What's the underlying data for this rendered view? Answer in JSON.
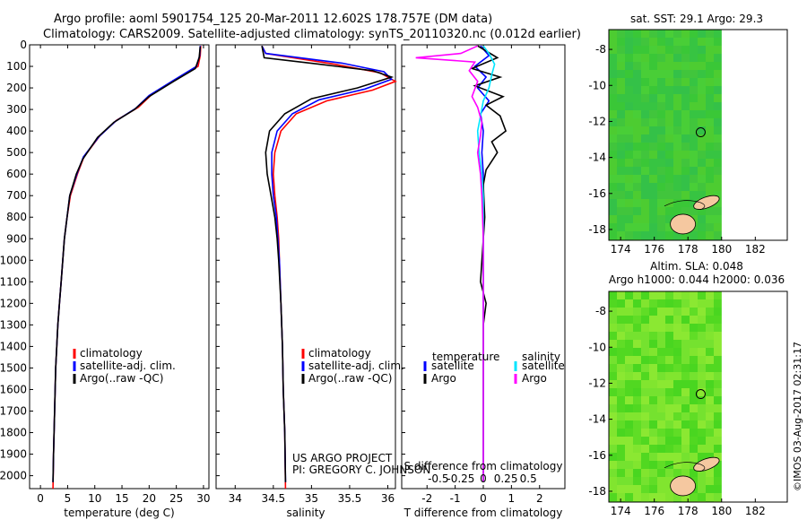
{
  "header": {
    "line1": "Argo profile: aoml 5901754_125 20-Mar-2011 12.602S 178.757E (DM data)",
    "line2": "Climatology: CARS2009. Satellite-adjusted climatology: synTS_20110320.nc (0.012d earlier)"
  },
  "footnote": {
    "project": "US ARGO PROJECT",
    "pi": "PI: GREGORY C. JOHNSON",
    "credit": "©IMOS 03-Aug-2017 02:31:17"
  },
  "colors": {
    "climatology": "#ff0000",
    "satellite": "#0000ff",
    "argo": "#000000",
    "salinity_satellite": "#00e5ff",
    "salinity_argo": "#ff00ff",
    "land": "#f5c8a0"
  },
  "chart_data": [
    {
      "type": "line",
      "panel": "temperature",
      "xlabel": "temperature (deg C)",
      "ylabel": "",
      "xlim": [
        -2,
        31
      ],
      "ylim": [
        2060,
        0
      ],
      "xticks": [
        0,
        5,
        10,
        15,
        20,
        25,
        30
      ],
      "yticks": [
        0,
        100,
        200,
        300,
        400,
        500,
        600,
        700,
        800,
        900,
        1000,
        1100,
        1200,
        1300,
        1400,
        1500,
        1600,
        1700,
        1800,
        1900,
        2000
      ],
      "legend": [
        "climatology",
        "satellite-adj. clim.",
        "Argo(..raw -QC)"
      ],
      "series": [
        {
          "name": "climatology",
          "points": [
            [
              29.5,
              5
            ],
            [
              29.4,
              50
            ],
            [
              29.0,
              100
            ],
            [
              25.0,
              160
            ],
            [
              20.5,
              230
            ],
            [
              18.0,
              290
            ],
            [
              14.0,
              350
            ],
            [
              11.0,
              420
            ],
            [
              8.0,
              520
            ],
            [
              6.8,
              600
            ],
            [
              5.5,
              700
            ],
            [
              4.9,
              800
            ],
            [
              4.4,
              900
            ],
            [
              4.1,
              1000
            ],
            [
              3.8,
              1100
            ],
            [
              3.5,
              1200
            ],
            [
              3.2,
              1300
            ],
            [
              3.0,
              1400
            ],
            [
              2.8,
              1500
            ],
            [
              2.6,
              1700
            ],
            [
              2.4,
              1900
            ],
            [
              2.3,
              2060
            ]
          ]
        },
        {
          "name": "satellite-adj. clim.",
          "points": [
            [
              29.4,
              5
            ],
            [
              29.3,
              50
            ],
            [
              28.7,
              100
            ],
            [
              24.5,
              165
            ],
            [
              20.0,
              235
            ],
            [
              17.5,
              295
            ],
            [
              13.8,
              355
            ],
            [
              10.8,
              425
            ],
            [
              7.9,
              520
            ],
            [
              6.7,
              600
            ],
            [
              5.4,
              700
            ],
            [
              4.9,
              800
            ],
            [
              4.4,
              900
            ],
            [
              4.1,
              1000
            ],
            [
              3.8,
              1100
            ],
            [
              3.5,
              1200
            ],
            [
              3.2,
              1300
            ],
            [
              3.0,
              1400
            ],
            [
              2.8,
              1500
            ],
            [
              2.6,
              1700
            ],
            [
              2.4,
              1900
            ],
            [
              2.3,
              2030
            ]
          ]
        },
        {
          "name": "Argo(..raw -QC)",
          "points": [
            [
              29.4,
              8
            ],
            [
              29.2,
              60
            ],
            [
              28.5,
              110
            ],
            [
              24.5,
              170
            ],
            [
              20.0,
              240
            ],
            [
              17.3,
              300
            ],
            [
              13.5,
              360
            ],
            [
              10.5,
              430
            ],
            [
              7.8,
              530
            ],
            [
              6.6,
              600
            ],
            [
              5.4,
              700
            ],
            [
              4.9,
              800
            ],
            [
              4.4,
              900
            ],
            [
              4.1,
              1000
            ],
            [
              3.8,
              1100
            ],
            [
              3.5,
              1200
            ],
            [
              3.2,
              1300
            ],
            [
              3.0,
              1400
            ],
            [
              2.8,
              1500
            ],
            [
              2.6,
              1700
            ],
            [
              2.4,
              1900
            ],
            [
              2.3,
              2030
            ]
          ]
        }
      ]
    },
    {
      "type": "line",
      "panel": "salinity",
      "xlabel": "salinity",
      "xlim": [
        33.75,
        36.1
      ],
      "ylim": [
        2060,
        0
      ],
      "xticks": [
        34,
        34.5,
        35,
        35.5,
        36
      ],
      "legend": [
        "climatology",
        "satellite-adj. clim.",
        "Argo(..raw -QC)"
      ],
      "series": [
        {
          "name": "climatology",
          "points": [
            [
              34.35,
              5
            ],
            [
              34.4,
              40
            ],
            [
              35.3,
              90
            ],
            [
              35.9,
              130
            ],
            [
              36.1,
              170
            ],
            [
              35.8,
              210
            ],
            [
              35.2,
              260
            ],
            [
              34.8,
              320
            ],
            [
              34.6,
              400
            ],
            [
              34.52,
              500
            ],
            [
              34.5,
              600
            ],
            [
              34.52,
              700
            ],
            [
              34.55,
              800
            ],
            [
              34.57,
              900
            ],
            [
              34.58,
              1000
            ],
            [
              34.6,
              1200
            ],
            [
              34.62,
              1400
            ],
            [
              34.63,
              1600
            ],
            [
              34.65,
              1800
            ],
            [
              34.66,
              2060
            ]
          ]
        },
        {
          "name": "satellite-adj. clim.",
          "points": [
            [
              34.35,
              5
            ],
            [
              34.4,
              40
            ],
            [
              35.4,
              85
            ],
            [
              35.95,
              125
            ],
            [
              36.05,
              160
            ],
            [
              35.7,
              205
            ],
            [
              35.1,
              255
            ],
            [
              34.75,
              320
            ],
            [
              34.55,
              400
            ],
            [
              34.48,
              500
            ],
            [
              34.48,
              600
            ],
            [
              34.5,
              700
            ],
            [
              34.54,
              800
            ],
            [
              34.56,
              900
            ],
            [
              34.58,
              1000
            ],
            [
              34.6,
              1200
            ],
            [
              34.62,
              1400
            ],
            [
              34.63,
              1600
            ],
            [
              34.65,
              1800
            ],
            [
              34.66,
              2030
            ]
          ]
        },
        {
          "name": "Argo(..raw -QC)",
          "points": [
            [
              34.35,
              5
            ],
            [
              34.38,
              60
            ],
            [
              35.1,
              90
            ],
            [
              35.8,
              120
            ],
            [
              36.05,
              150
            ],
            [
              35.6,
              200
            ],
            [
              35.0,
              250
            ],
            [
              34.65,
              320
            ],
            [
              34.45,
              400
            ],
            [
              34.4,
              500
            ],
            [
              34.42,
              600
            ],
            [
              34.47,
              700
            ],
            [
              34.52,
              800
            ],
            [
              34.55,
              900
            ],
            [
              34.57,
              1000
            ],
            [
              34.6,
              1200
            ],
            [
              34.62,
              1400
            ],
            [
              34.63,
              1600
            ],
            [
              34.65,
              1800
            ],
            [
              34.66,
              2030
            ]
          ]
        }
      ]
    },
    {
      "type": "line",
      "panel": "difference",
      "xlabel": "T difference from climatology",
      "xlabel2": "S difference from climatology",
      "xlim": [
        -2.9,
        2.9
      ],
      "ylim": [
        2060,
        0
      ],
      "xticks": [
        -2,
        -1,
        0,
        1,
        2
      ],
      "xticks_S": [
        "-0.5",
        "-0.25",
        "0",
        "0.25",
        "0.5"
      ],
      "legend_T": "temperature",
      "legend_S": "salinity",
      "legend_items": [
        "satellite",
        "Argo",
        "satellite",
        "Argo"
      ],
      "series": [
        {
          "name": "temperature satellite",
          "points": [
            [
              -0.1,
              5
            ],
            [
              0.2,
              50
            ],
            [
              -0.3,
              100
            ],
            [
              0.1,
              150
            ],
            [
              -0.2,
              200
            ],
            [
              0.2,
              260
            ],
            [
              -0.1,
              320
            ],
            [
              0.0,
              400
            ],
            [
              -0.05,
              500
            ],
            [
              0.0,
              600
            ],
            [
              0.0,
              800
            ],
            [
              0.0,
              1200
            ],
            [
              0.0,
              1600
            ],
            [
              0.0,
              2030
            ]
          ]
        },
        {
          "name": "temperature Argo",
          "points": [
            [
              -0.2,
              5
            ],
            [
              0.5,
              60
            ],
            [
              -0.4,
              110
            ],
            [
              0.6,
              150
            ],
            [
              -0.3,
              190
            ],
            [
              0.7,
              240
            ],
            [
              0.1,
              280
            ],
            [
              0.6,
              330
            ],
            [
              0.8,
              400
            ],
            [
              0.3,
              450
            ],
            [
              0.5,
              500
            ],
            [
              0.1,
              580
            ],
            [
              0.0,
              650
            ],
            [
              0.05,
              800
            ],
            [
              -0.1,
              1100
            ],
            [
              0.1,
              1200
            ],
            [
              0.0,
              1300
            ],
            [
              0.0,
              1600
            ],
            [
              0.0,
              2030
            ]
          ]
        },
        {
          "name": "salinity satellite",
          "points": [
            [
              0.0,
              5
            ],
            [
              0.2,
              40
            ],
            [
              0.4,
              90
            ],
            [
              0.3,
              140
            ],
            [
              0.2,
              200
            ],
            [
              0.0,
              260
            ],
            [
              -0.1,
              330
            ],
            [
              -0.2,
              400
            ],
            [
              -0.15,
              500
            ],
            [
              -0.05,
              600
            ],
            [
              0.0,
              700
            ],
            [
              0.0,
              900
            ],
            [
              0.0,
              1200
            ],
            [
              0.0,
              2030
            ]
          ]
        },
        {
          "name": "salinity Argo",
          "points": [
            [
              -0.2,
              5
            ],
            [
              -0.8,
              40
            ],
            [
              -2.4,
              60
            ],
            [
              -0.3,
              80
            ],
            [
              -0.5,
              120
            ],
            [
              -0.2,
              170
            ],
            [
              -0.4,
              240
            ],
            [
              -0.2,
              290
            ],
            [
              -0.05,
              360
            ],
            [
              -0.1,
              420
            ],
            [
              -0.2,
              500
            ],
            [
              -0.1,
              600
            ],
            [
              -0.05,
              700
            ],
            [
              0.0,
              900
            ],
            [
              0.0,
              1200
            ],
            [
              0.0,
              2030
            ]
          ]
        }
      ]
    },
    {
      "type": "heatmap",
      "panel": "sst-map",
      "title": "sat. SST: 29.1  Argo: 29.3",
      "xticks": [
        "174",
        "176",
        "178",
        "180",
        "182"
      ],
      "yticks": [
        "-8",
        "-10",
        "-12",
        "-14",
        "-16",
        "-18"
      ],
      "argo_position": [
        178.757,
        -12.602
      ]
    },
    {
      "type": "heatmap",
      "panel": "sla-map",
      "title1": "Altim. SLA: 0.048",
      "title2": "Argo h1000: 0.044  h2000: 0.036",
      "xticks": [
        "174",
        "176",
        "178",
        "180",
        "182"
      ],
      "yticks": [
        "-8",
        "-10",
        "-12",
        "-14",
        "-16",
        "-18"
      ],
      "argo_position": [
        178.757,
        -12.602
      ]
    }
  ]
}
